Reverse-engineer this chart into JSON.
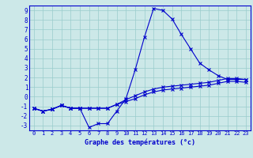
{
  "xlabel": "Graphe des températures (°c)",
  "hours": [
    0,
    1,
    2,
    3,
    4,
    5,
    6,
    7,
    8,
    9,
    10,
    11,
    12,
    13,
    14,
    15,
    16,
    17,
    18,
    19,
    20,
    21,
    22,
    23
  ],
  "line1": [
    -1.2,
    -1.5,
    -1.3,
    -0.9,
    -1.2,
    -1.2,
    -3.2,
    -2.8,
    -2.8,
    -1.5,
    -0.2,
    2.8,
    6.2,
    9.2,
    9.0,
    8.1,
    6.5,
    5.0,
    3.5,
    2.8,
    2.2,
    1.8,
    1.8,
    1.8
  ],
  "line2": [
    -1.2,
    -1.5,
    -1.3,
    -0.9,
    -1.2,
    -1.2,
    -1.2,
    -1.2,
    -1.2,
    -0.8,
    -0.3,
    0.1,
    0.5,
    0.8,
    1.0,
    1.1,
    1.2,
    1.3,
    1.4,
    1.5,
    1.7,
    1.9,
    1.9,
    1.8
  ],
  "line3": [
    -1.2,
    -1.5,
    -1.3,
    -0.9,
    -1.2,
    -1.2,
    -1.2,
    -1.2,
    -1.2,
    -0.8,
    -0.5,
    -0.2,
    0.2,
    0.5,
    0.7,
    0.8,
    0.9,
    1.0,
    1.1,
    1.2,
    1.4,
    1.6,
    1.6,
    1.5
  ],
  "line_color": "#0000cc",
  "bg_color": "#cce8e8",
  "grid_color": "#99cccc",
  "ylim": [
    -3.5,
    9.5
  ],
  "xlim": [
    -0.5,
    23.5
  ],
  "yticks": [
    -3,
    -2,
    -1,
    0,
    1,
    2,
    3,
    4,
    5,
    6,
    7,
    8,
    9
  ],
  "xticks": [
    0,
    1,
    2,
    3,
    4,
    5,
    6,
    7,
    8,
    9,
    10,
    11,
    12,
    13,
    14,
    15,
    16,
    17,
    18,
    19,
    20,
    21,
    22,
    23
  ]
}
